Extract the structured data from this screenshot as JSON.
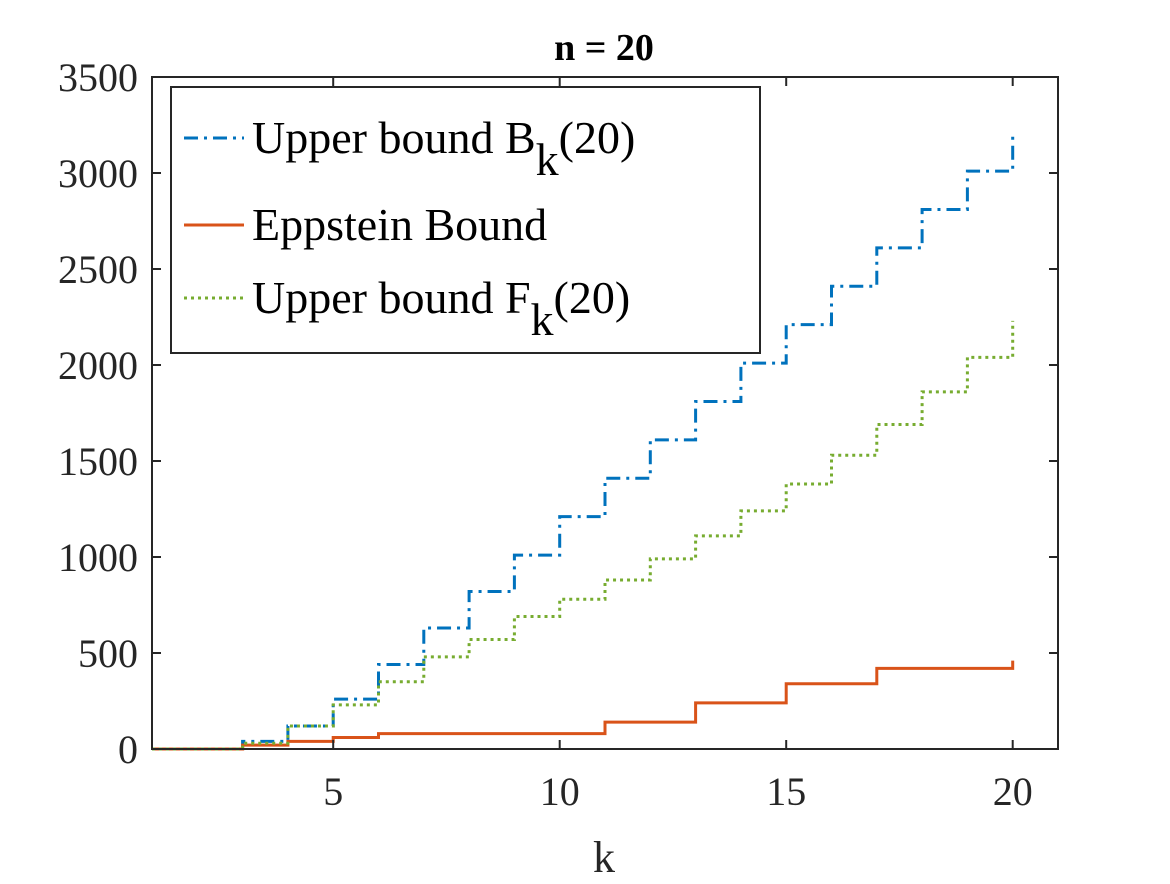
{
  "chart_data": {
    "type": "line",
    "subtype": "stairs",
    "title": "n = 20",
    "xlabel": "k",
    "ylabel": "",
    "xlim": [
      1,
      21
    ],
    "ylim": [
      0,
      3500
    ],
    "xticks": [
      "5",
      "10",
      "15",
      "20"
    ],
    "xtick_values": [
      5,
      10,
      15,
      20
    ],
    "yticks": [
      "0",
      "500",
      "1000",
      "1500",
      "2000",
      "2500",
      "3000",
      "3500"
    ],
    "ytick_values": [
      0,
      500,
      1000,
      1500,
      2000,
      2500,
      3000,
      3500
    ],
    "grid": false,
    "legend_position": "top-left",
    "x": [
      1,
      2,
      3,
      4,
      5,
      6,
      7,
      8,
      9,
      10,
      11,
      12,
      13,
      14,
      15,
      16,
      17,
      18,
      19,
      20
    ],
    "series": [
      {
        "name": "Upper bound B",
        "name_sub": "k",
        "name_suffix": "(20)",
        "color": "#0072BD",
        "dash": "dashdot",
        "values": [
          0,
          0,
          40,
          120,
          260,
          440,
          630,
          820,
          1010,
          1210,
          1410,
          1610,
          1810,
          2010,
          2210,
          2410,
          2610,
          2810,
          3010,
          3210
        ]
      },
      {
        "name": "Eppstein Bound",
        "name_sub": "",
        "name_suffix": "",
        "color": "#D95319",
        "dash": "solid",
        "values": [
          0,
          0,
          20,
          40,
          60,
          80,
          80,
          80,
          80,
          80,
          140,
          140,
          240,
          240,
          340,
          340,
          420,
          420,
          420,
          460
        ]
      },
      {
        "name": "Upper bound F",
        "name_sub": "k",
        "name_suffix": "(20)",
        "color": "#77AC30",
        "dash": "dotted",
        "values": [
          0,
          0,
          30,
          120,
          230,
          350,
          480,
          570,
          690,
          780,
          880,
          990,
          1110,
          1240,
          1380,
          1530,
          1690,
          1860,
          2040,
          2230
        ]
      }
    ]
  }
}
